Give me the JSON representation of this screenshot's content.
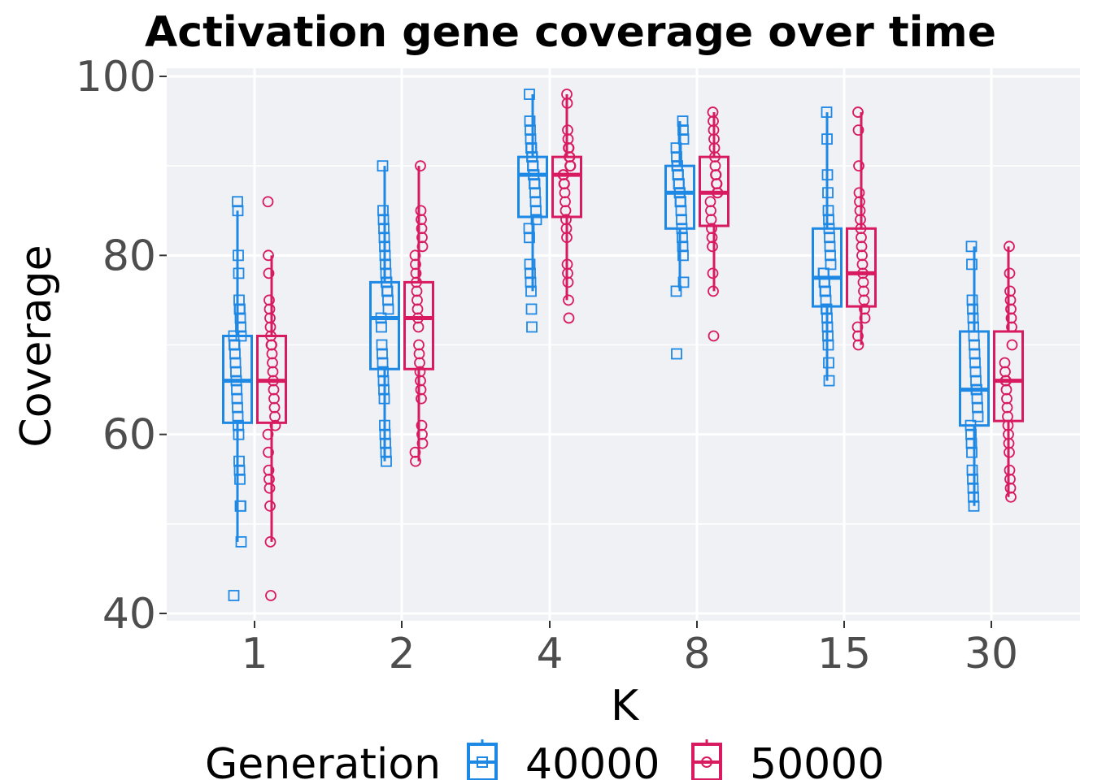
{
  "chart_data": {
    "type": "boxplot",
    "title": "Activation gene coverage over time",
    "xlabel": "K",
    "ylabel": "Coverage",
    "categories": [
      "1",
      "2",
      "4",
      "8",
      "15",
      "30"
    ],
    "ylim": [
      39.3,
      100.7
    ],
    "yticks": [
      40,
      60,
      80,
      100
    ],
    "grid": true,
    "legend": {
      "title": "Generation",
      "position": "bottom"
    },
    "series": [
      {
        "name": "40000",
        "color": "#1e88e5",
        "marker": "square",
        "boxes": [
          {
            "whisker_low": 48,
            "q1": 61.3,
            "median": 66,
            "q3": 71,
            "whisker_high": 85,
            "points": [
              42,
              48,
              52,
              52,
              55,
              56,
              57,
              60,
              61,
              62,
              63,
              64,
              65,
              66,
              67,
              68,
              69,
              70,
              70,
              71,
              71,
              72,
              73,
              74,
              74,
              75,
              78,
              80,
              85,
              86
            ]
          },
          {
            "whisker_low": 57,
            "q1": 67.3,
            "median": 73,
            "q3": 77,
            "whisker_high": 90,
            "points": [
              57,
              58,
              59,
              60,
              61,
              64,
              65,
              66,
              67,
              68,
              69,
              70,
              72,
              73,
              74,
              75,
              76,
              76,
              77,
              77,
              78,
              79,
              80,
              81,
              82,
              83,
              84,
              85,
              90
            ]
          },
          {
            "whisker_low": 76,
            "q1": 84.3,
            "median": 89,
            "q3": 91,
            "whisker_high": 98,
            "points": [
              72,
              74,
              76,
              77,
              78,
              79,
              82,
              83,
              84,
              85,
              86,
              87,
              88,
              88,
              89,
              89,
              90,
              90,
              91,
              91,
              92,
              92,
              93,
              94,
              95,
              98
            ]
          },
          {
            "whisker_low": 76,
            "q1": 83,
            "median": 87,
            "q3": 90,
            "whisker_high": 95,
            "points": [
              69,
              76,
              77,
              80,
              81,
              82,
              83,
              84,
              85,
              86,
              86,
              87,
              87,
              88,
              88,
              89,
              89,
              90,
              90,
              91,
              92,
              93,
              94,
              95
            ]
          },
          {
            "whisker_low": 66,
            "q1": 74.3,
            "median": 77.5,
            "q3": 83,
            "whisker_high": 96,
            "points": [
              66,
              68,
              70,
              71,
              72,
              73,
              74,
              74,
              75,
              76,
              76,
              77,
              77,
              78,
              78,
              79,
              80,
              81,
              82,
              83,
              84,
              85,
              87,
              89,
              93,
              96
            ]
          },
          {
            "whisker_low": 52,
            "q1": 61,
            "median": 65,
            "q3": 71.5,
            "whisker_high": 81,
            "points": [
              52,
              53,
              54,
              55,
              56,
              58,
              59,
              60,
              61,
              62,
              63,
              64,
              65,
              65,
              66,
              67,
              68,
              69,
              70,
              71,
              72,
              73,
              74,
              75,
              79,
              81
            ]
          }
        ]
      },
      {
        "name": "50000",
        "color": "#d81b60",
        "marker": "circle",
        "boxes": [
          {
            "whisker_low": 48,
            "q1": 61.3,
            "median": 66,
            "q3": 71,
            "whisker_high": 80,
            "points": [
              42,
              48,
              52,
              54,
              55,
              56,
              58,
              60,
              61,
              62,
              63,
              64,
              65,
              66,
              67,
              68,
              69,
              70,
              70,
              71,
              72,
              73,
              74,
              75,
              78,
              80,
              86
            ]
          },
          {
            "whisker_low": 57,
            "q1": 67.3,
            "median": 73,
            "q3": 77,
            "whisker_high": 90,
            "points": [
              57,
              58,
              59,
              60,
              61,
              64,
              65,
              66,
              67,
              68,
              69,
              70,
              72,
              73,
              74,
              75,
              76,
              77,
              78,
              79,
              80,
              81,
              82,
              83,
              84,
              85,
              90
            ]
          },
          {
            "whisker_low": 75,
            "q1": 84.3,
            "median": 89,
            "q3": 91,
            "whisker_high": 98,
            "points": [
              73,
              75,
              77,
              78,
              79,
              82,
              83,
              84,
              85,
              86,
              87,
              88,
              88,
              89,
              89,
              90,
              90,
              91,
              91,
              92,
              92,
              93,
              94,
              97,
              98
            ]
          },
          {
            "whisker_low": 76,
            "q1": 83.3,
            "median": 87,
            "q3": 91,
            "whisker_high": 96,
            "points": [
              71,
              76,
              78,
              81,
              82,
              83,
              84,
              85,
              86,
              87,
              87,
              88,
              88,
              89,
              89,
              90,
              91,
              92,
              93,
              94,
              95,
              96
            ]
          },
          {
            "whisker_low": 70,
            "q1": 74.3,
            "median": 78,
            "q3": 83,
            "whisker_high": 96,
            "points": [
              70,
              71,
              72,
              73,
              74,
              75,
              76,
              77,
              78,
              79,
              80,
              81,
              82,
              83,
              84,
              85,
              86,
              87,
              90,
              94,
              96
            ]
          },
          {
            "whisker_low": 53,
            "q1": 61.5,
            "median": 66,
            "q3": 71.5,
            "whisker_high": 81,
            "points": [
              53,
              54,
              55,
              56,
              58,
              59,
              60,
              61,
              62,
              63,
              64,
              65,
              66,
              66,
              67,
              68,
              70,
              72,
              73,
              74,
              75,
              76,
              78,
              81
            ]
          }
        ]
      }
    ]
  }
}
